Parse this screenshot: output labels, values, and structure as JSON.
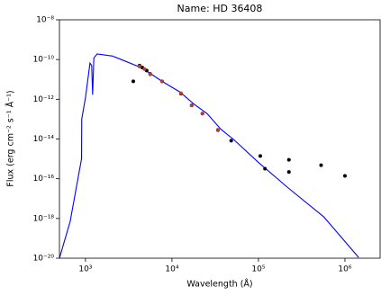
{
  "chart_data": {
    "type": "line",
    "title": "Name: HD 36408",
    "x_label": "Wavelength (Å)",
    "y_label": "Flux (erg cm⁻² s⁻¹ Å⁻¹)",
    "xscale": "log",
    "yscale": "log",
    "xlim": [
      500,
      2550000
    ],
    "ylim": [
      1e-20,
      1e-08
    ],
    "xticks": [
      {
        "value": 1000,
        "label": "10³"
      },
      {
        "value": 10000,
        "label": "10⁴"
      },
      {
        "value": 100000,
        "label": "10⁵"
      },
      {
        "value": 1000000,
        "label": "10⁶"
      }
    ],
    "yticks": [
      {
        "value": 1e-20,
        "label": "10⁻²⁰"
      },
      {
        "value": 1e-18,
        "label": "10⁻¹⁸"
      },
      {
        "value": 1e-16,
        "label": "10⁻¹⁶"
      },
      {
        "value": 1e-14,
        "label": "10⁻¹⁴"
      },
      {
        "value": 1e-12,
        "label": "10⁻¹²"
      },
      {
        "value": 1e-10,
        "label": "10⁻¹⁰"
      },
      {
        "value": 1e-08,
        "label": "10⁻⁸"
      }
    ],
    "series": [
      {
        "type": "line",
        "color": "#0000ff",
        "x": [
          500,
          665,
          900,
          905,
          1000,
          1127,
          1180,
          1210,
          1250,
          1366,
          2052,
          2943,
          4217,
          5340,
          7680,
          12400,
          17800,
          25500,
          36500,
          52300,
          100000,
          220000,
          570000,
          1440000
        ],
        "values": [
          1e-20,
          7e-19,
          1e-15,
          1e-13,
          1.2e-12,
          6.6e-11,
          5e-11,
          1.7e-12,
          1.2e-10,
          1.9e-10,
          1.5e-10,
          8e-11,
          4.2e-11,
          2.3e-11,
          8e-12,
          2.3e-12,
          5.9e-13,
          1.9e-13,
          3.2e-14,
          9e-15,
          6.6e-16,
          3.5e-17,
          1.2e-18,
          1.1e-20
        ]
      },
      {
        "type": "scatter",
        "color": "#000000",
        "x": [
          3570,
          4217,
          4530,
          5100,
          5600,
          7680,
          12700,
          16900,
          22500,
          34000,
          48400,
          105000,
          119000,
          225000,
          225000,
          530000,
          1000000
        ],
        "values": [
          8e-12,
          5e-11,
          4e-11,
          2.8e-11,
          1.9e-11,
          8e-12,
          1.9e-12,
          4.9e-13,
          1.9e-13,
          2.8e-14,
          8.2e-15,
          1.4e-15,
          3.2e-16,
          9e-16,
          2.2e-16,
          4.8e-16,
          1.4e-16
        ]
      },
      {
        "type": "scatter",
        "color": "#c0392b",
        "x": [
          4217,
          4800,
          5600,
          7680,
          12700,
          16900,
          22500,
          34000
        ],
        "values": [
          4.5e-11,
          3.3e-11,
          1.8e-11,
          8e-12,
          2e-12,
          5e-13,
          1.9e-13,
          2.9e-14
        ]
      }
    ]
  }
}
